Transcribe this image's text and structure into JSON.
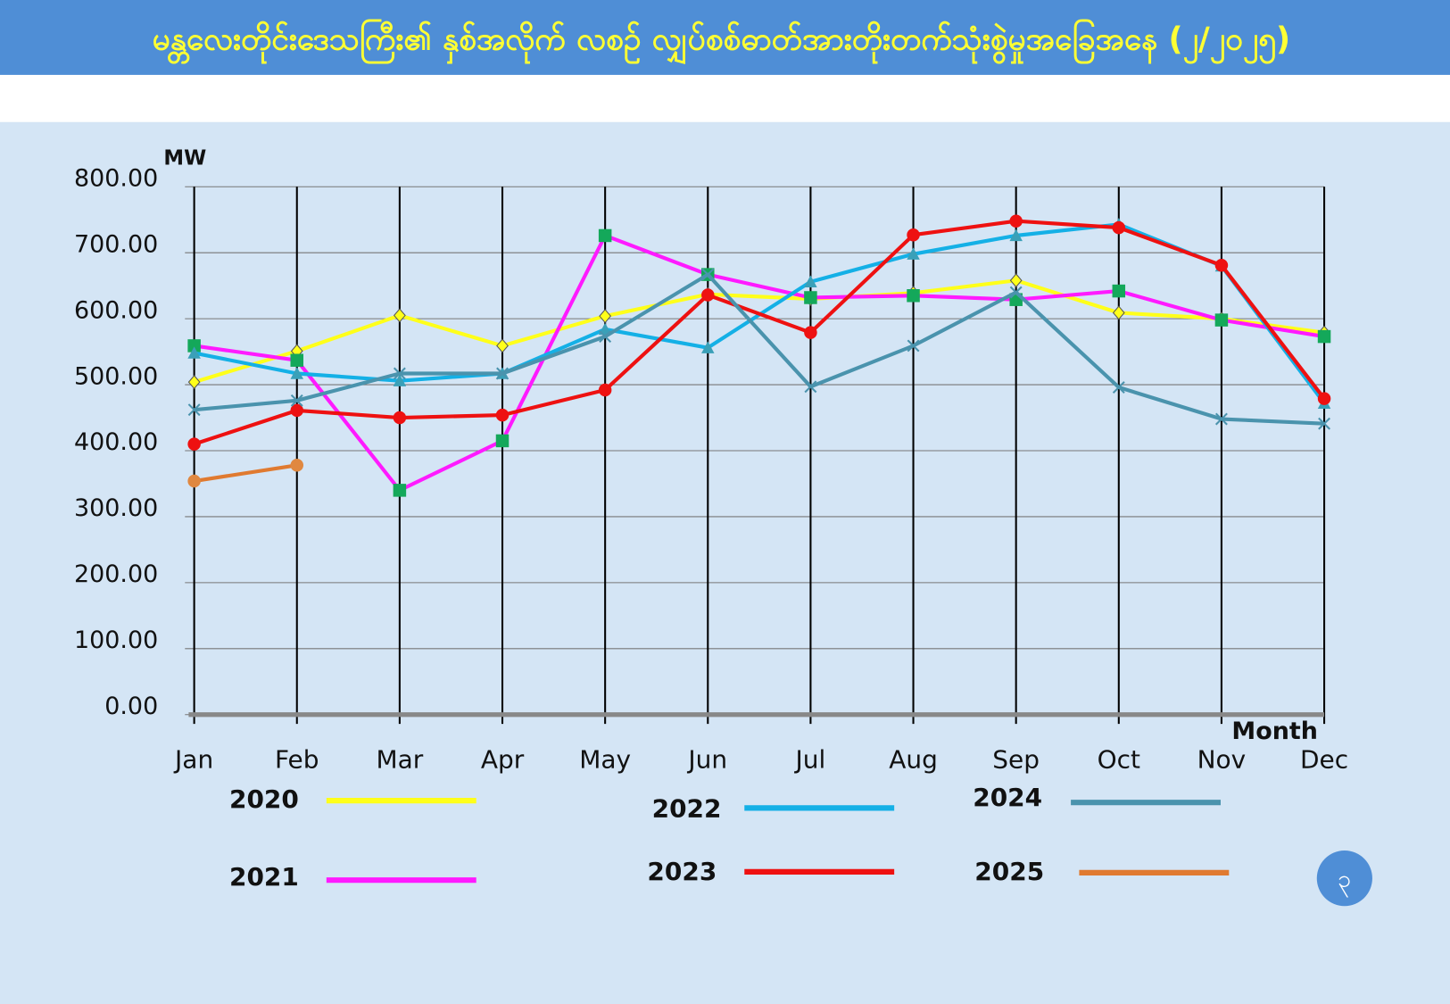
{
  "chart_data": {
    "type": "line",
    "title": "မန္တလေးတိုင်းဒေသကြီး၏ နှစ်အလိုက် လစဉ် လျှပ်စစ်ဓာတ်အားတိုးတက်သုံးစွဲမှုအခြေအနေ (၂/၂၀၂၅)",
    "y_label": "MW",
    "x_label": "Month",
    "page_number": "၃",
    "categories": [
      "Jan",
      "Feb",
      "Mar",
      "Apr",
      "May",
      "Jun",
      "Jul",
      "Aug",
      "Sep",
      "Oct",
      "Nov",
      "Dec"
    ],
    "ylim": [
      0,
      800
    ],
    "yticks": [
      {
        "value": 0,
        "label": "0.00"
      },
      {
        "value": 100,
        "label": "100.00"
      },
      {
        "value": 200,
        "label": "200.00"
      },
      {
        "value": 300,
        "label": "300.00"
      },
      {
        "value": 400,
        "label": "400.00"
      },
      {
        "value": 500,
        "label": "500.00"
      },
      {
        "value": 600,
        "label": "600.00"
      },
      {
        "value": 700,
        "label": "700.00"
      },
      {
        "value": 800,
        "label": "800.00"
      }
    ],
    "grid": true,
    "series": [
      {
        "name": "2020",
        "color": "#ffff1a",
        "marker": "diamond",
        "marker_color": "#ffff1a",
        "values": [
          504,
          551,
          605,
          559,
          604,
          637,
          630,
          639,
          658,
          609,
          600,
          579
        ]
      },
      {
        "name": "2021",
        "color": "#ff1aff",
        "marker": "square",
        "marker_color": "#14a85a",
        "values": [
          559,
          537,
          340,
          415,
          726,
          667,
          632,
          635,
          629,
          642,
          598,
          573
        ]
      },
      {
        "name": "2022",
        "color": "#14b0e6",
        "marker": "triangle",
        "marker_color": "#3aa0b8",
        "values": [
          548,
          517,
          506,
          517,
          584,
          556,
          656,
          698,
          726,
          743,
          680,
          472
        ]
      },
      {
        "name": "2023",
        "color": "#ee1111",
        "marker": "circle",
        "marker_color": "#ee1111",
        "values": [
          410,
          461,
          450,
          454,
          492,
          636,
          579,
          727,
          748,
          738,
          681,
          479
        ]
      },
      {
        "name": "2024",
        "color": "#4a93ad",
        "marker": "x",
        "marker_color": "#4a93ad",
        "values": [
          462,
          476,
          517,
          517,
          573,
          667,
          497,
          559,
          640,
          496,
          448,
          441
        ]
      },
      {
        "name": "2025",
        "color": "#e07a30",
        "marker": "circle",
        "marker_color": "#e08840",
        "values": [
          354,
          378,
          null,
          null,
          null,
          null,
          null,
          null,
          null,
          null,
          null,
          null
        ]
      }
    ]
  }
}
